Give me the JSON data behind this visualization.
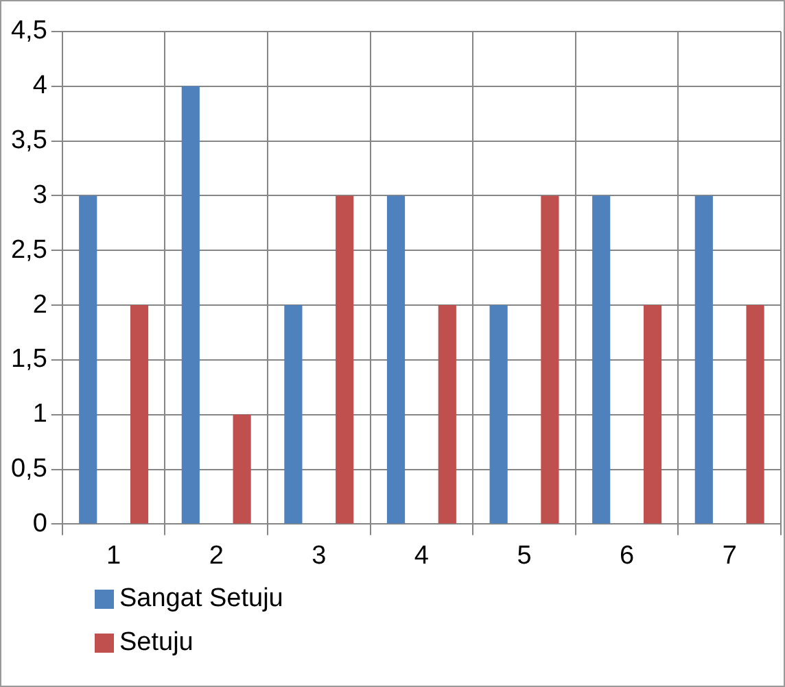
{
  "chart_data": {
    "type": "bar",
    "categories": [
      "1",
      "2",
      "3",
      "4",
      "5",
      "6",
      "7"
    ],
    "series": [
      {
        "name": "Sangat Setuju",
        "color": "#4f81bd",
        "values": [
          3,
          4,
          2,
          3,
          2,
          3,
          3
        ]
      },
      {
        "name": "Setuju",
        "color": "#c0504d",
        "values": [
          2,
          1,
          3,
          2,
          3,
          2,
          2
        ]
      }
    ],
    "ylim": [
      0,
      4.5
    ],
    "yticks": [
      0,
      {
        "value": 0.5,
        "label": "0,5"
      },
      1,
      {
        "value": 1.5,
        "label": "1,5"
      },
      2,
      {
        "value": 2.5,
        "label": "2,5"
      },
      3,
      {
        "value": 3.5,
        "label": "3,5"
      },
      4,
      {
        "value": 4.5,
        "label": "4,5"
      }
    ],
    "grid": true,
    "legend": "bottom left"
  }
}
